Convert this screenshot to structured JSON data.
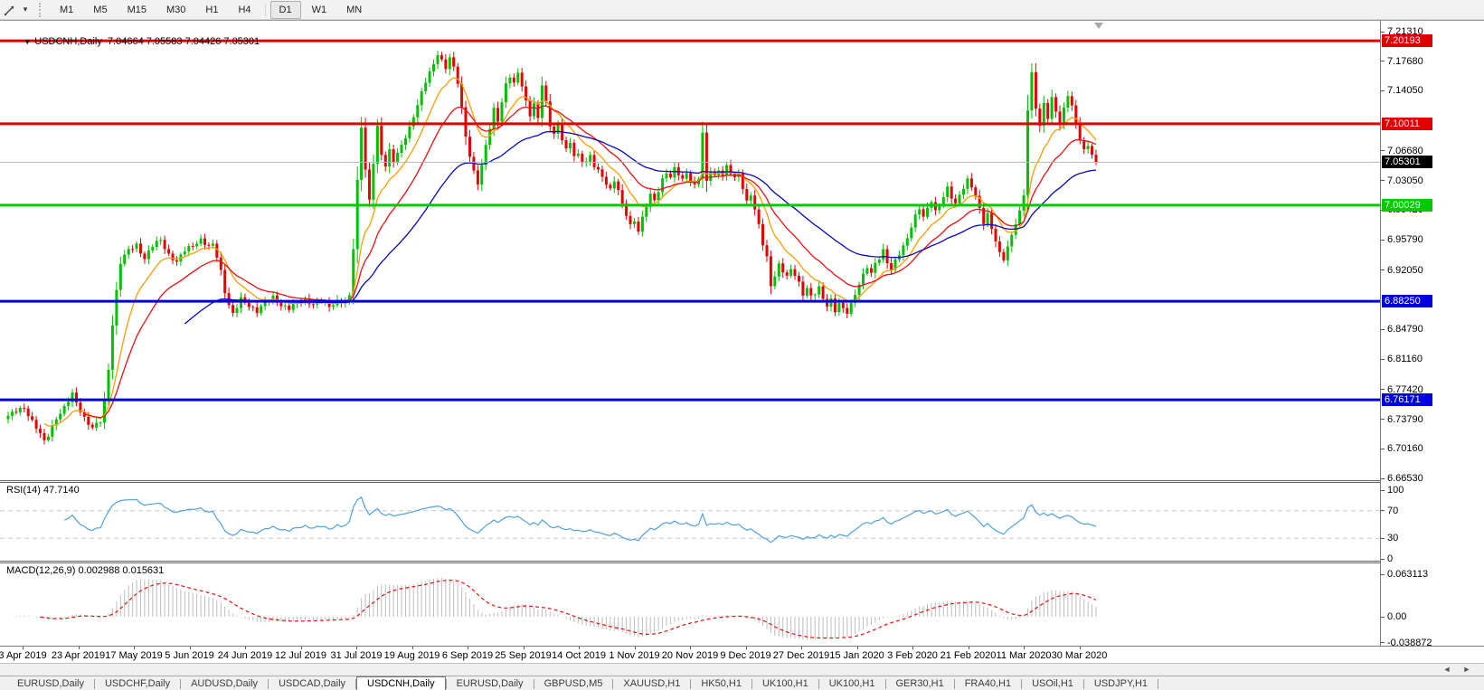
{
  "icons": {
    "dropdown": "▾",
    "title_marker": "▼",
    "scroll_left": "◄",
    "scroll_right": "►"
  },
  "toolbar": {
    "timeframes": [
      "M1",
      "M5",
      "M15",
      "M30",
      "H1",
      "H4",
      "D1",
      "W1",
      "MN"
    ],
    "active_timeframe": "D1"
  },
  "chart": {
    "title_text": "USDCNH,Daily  7.04664 7.05583 7.04426 7.05301",
    "symbol": "USDCNH",
    "timeframe": "Daily",
    "open": 7.04664,
    "high": 7.05583,
    "low": 7.04426,
    "close": 7.05301
  },
  "chart_data": {
    "type": "candlestick",
    "symbol": "USDCNH",
    "period": "Daily",
    "x_labels": [
      "3 Apr 2019",
      "23 Apr 2019",
      "17 May 2019",
      "5 Jun 2019",
      "24 Jun 2019",
      "12 Jul 2019",
      "31 Jul 2019",
      "19 Aug 2019",
      "6 Sep 2019",
      "25 Sep 2019",
      "14 Oct 2019",
      "1 Nov 2019",
      "20 Nov 2019",
      "9 Dec 2019",
      "27 Dec 2019",
      "15 Jan 2020",
      "3 Feb 2020",
      "21 Feb 2020",
      "11 Mar 2020",
      "30 Mar 2020"
    ],
    "price_axis_ticks": [
      "7.21310",
      "7.17680",
      "7.14050",
      "7.06680",
      "7.03050",
      "6.99420",
      "6.95790",
      "6.92050",
      "6.84790",
      "6.81160",
      "6.77420",
      "6.73790",
      "6.70160",
      "6.66530"
    ],
    "price_axis_top": 7.2131,
    "price_axis_bottom": 6.6653,
    "horizontal_levels": [
      {
        "value": 7.20193,
        "label": "7.20193",
        "color": "#e00000",
        "type": "resistance"
      },
      {
        "value": 7.10011,
        "label": "7.10011",
        "color": "#e00000",
        "type": "resistance"
      },
      {
        "value": 7.00029,
        "label": "7.00029",
        "color": "#00cc00",
        "type": "support"
      },
      {
        "value": 6.8825,
        "label": "6.88250",
        "color": "#0000e0",
        "type": "support"
      },
      {
        "value": 6.76171,
        "label": "6.76171",
        "color": "#0000e0",
        "type": "support"
      }
    ],
    "current_price": {
      "value": 7.05301,
      "label": "7.05301",
      "line_color": "#b4b4b4",
      "badge_color": "#000000"
    },
    "candle_count": 272,
    "bull_color": "#00c000",
    "bear_color": "#e80000",
    "close_path_anchors": [
      [
        0,
        6.742
      ],
      [
        2,
        6.747
      ],
      [
        4,
        6.752
      ],
      [
        5,
        6.744
      ],
      [
        7,
        6.728
      ],
      [
        9,
        6.71
      ],
      [
        10,
        6.718
      ],
      [
        12,
        6.74
      ],
      [
        14,
        6.752
      ],
      [
        16,
        6.768
      ],
      [
        17,
        6.758
      ],
      [
        19,
        6.74
      ],
      [
        21,
        6.727
      ],
      [
        23,
        6.735
      ],
      [
        24,
        6.76
      ],
      [
        25,
        6.8
      ],
      [
        26,
        6.855
      ],
      [
        27,
        6.895
      ],
      [
        28,
        6.93
      ],
      [
        30,
        6.945
      ],
      [
        32,
        6.952
      ],
      [
        34,
        6.935
      ],
      [
        36,
        6.95
      ],
      [
        38,
        6.958
      ],
      [
        40,
        6.94
      ],
      [
        42,
        6.93
      ],
      [
        44,
        6.945
      ],
      [
        46,
        6.952
      ],
      [
        48,
        6.958
      ],
      [
        50,
        6.948
      ],
      [
        51,
        6.952
      ],
      [
        52,
        6.938
      ],
      [
        53,
        6.92
      ],
      [
        54,
        6.895
      ],
      [
        55,
        6.878
      ],
      [
        56,
        6.866
      ],
      [
        57,
        6.875
      ],
      [
        58,
        6.885
      ],
      [
        60,
        6.878
      ],
      [
        62,
        6.87
      ],
      [
        64,
        6.88
      ],
      [
        66,
        6.888
      ],
      [
        68,
        6.878
      ],
      [
        70,
        6.873
      ],
      [
        72,
        6.88
      ],
      [
        74,
        6.885
      ],
      [
        76,
        6.878
      ],
      [
        78,
        6.882
      ],
      [
        80,
        6.877
      ],
      [
        82,
        6.883
      ],
      [
        84,
        6.88
      ],
      [
        85,
        6.888
      ],
      [
        86,
        6.948
      ],
      [
        87,
        7.03
      ],
      [
        88,
        7.098
      ],
      [
        89,
        7.045
      ],
      [
        90,
        7.005
      ],
      [
        91,
        7.052
      ],
      [
        92,
        7.095
      ],
      [
        93,
        7.062
      ],
      [
        94,
        7.05
      ],
      [
        95,
        7.068
      ],
      [
        96,
        7.055
      ],
      [
        98,
        7.072
      ],
      [
        100,
        7.095
      ],
      [
        102,
        7.125
      ],
      [
        104,
        7.152
      ],
      [
        106,
        7.172
      ],
      [
        107,
        7.186
      ],
      [
        108,
        7.178
      ],
      [
        109,
        7.17
      ],
      [
        110,
        7.182
      ],
      [
        111,
        7.168
      ],
      [
        112,
        7.15
      ],
      [
        113,
        7.118
      ],
      [
        114,
        7.085
      ],
      [
        115,
        7.062
      ],
      [
        116,
        7.042
      ],
      [
        117,
        7.028
      ],
      [
        118,
        7.048
      ],
      [
        119,
        7.072
      ],
      [
        120,
        7.095
      ],
      [
        121,
        7.118
      ],
      [
        122,
        7.105
      ],
      [
        123,
        7.128
      ],
      [
        124,
        7.148
      ],
      [
        125,
        7.158
      ],
      [
        126,
        7.148
      ],
      [
        127,
        7.162
      ],
      [
        128,
        7.148
      ],
      [
        129,
        7.128
      ],
      [
        130,
        7.112
      ],
      [
        131,
        7.125
      ],
      [
        132,
        7.105
      ],
      [
        133,
        7.148
      ],
      [
        134,
        7.125
      ],
      [
        135,
        7.098
      ],
      [
        136,
        7.09
      ],
      [
        137,
        7.098
      ],
      [
        138,
        7.082
      ],
      [
        139,
        7.068
      ],
      [
        140,
        7.075
      ],
      [
        141,
        7.062
      ],
      [
        142,
        7.062
      ],
      [
        143,
        7.055
      ],
      [
        144,
        7.055
      ],
      [
        145,
        7.06
      ],
      [
        146,
        7.048
      ],
      [
        148,
        7.035
      ],
      [
        150,
        7.02
      ],
      [
        151,
        7.032
      ],
      [
        152,
        7.018
      ],
      [
        153,
        7.0
      ],
      [
        154,
        6.988
      ],
      [
        155,
        6.975
      ],
      [
        156,
        6.982
      ],
      [
        157,
        6.97
      ],
      [
        158,
        6.985
      ],
      [
        159,
        7.0
      ],
      [
        160,
        7.012
      ],
      [
        161,
        7.005
      ],
      [
        162,
        7.018
      ],
      [
        163,
        7.032
      ],
      [
        164,
        7.042
      ],
      [
        165,
        7.035
      ],
      [
        166,
        7.045
      ],
      [
        167,
        7.038
      ],
      [
        168,
        7.03
      ],
      [
        169,
        7.04
      ],
      [
        170,
        7.032
      ],
      [
        171,
        7.025
      ],
      [
        172,
        7.035
      ],
      [
        173,
        7.088
      ],
      [
        174,
        7.028
      ],
      [
        175,
        7.042
      ],
      [
        176,
        7.035
      ],
      [
        177,
        7.045
      ],
      [
        178,
        7.038
      ],
      [
        179,
        7.048
      ],
      [
        180,
        7.04
      ],
      [
        181,
        7.032
      ],
      [
        182,
        7.038
      ],
      [
        183,
        7.022
      ],
      [
        184,
        7.005
      ],
      [
        185,
        7.015
      ],
      [
        186,
        6.995
      ],
      [
        187,
        6.975
      ],
      [
        188,
        6.952
      ],
      [
        189,
        6.935
      ],
      [
        190,
        6.902
      ],
      [
        191,
        6.915
      ],
      [
        192,
        6.928
      ],
      [
        193,
        6.92
      ],
      [
        194,
        6.912
      ],
      [
        195,
        6.92
      ],
      [
        196,
        6.915
      ],
      [
        197,
        6.905
      ],
      [
        198,
        6.892
      ],
      [
        199,
        6.9
      ],
      [
        200,
        6.888
      ],
      [
        201,
        6.892
      ],
      [
        202,
        6.898
      ],
      [
        203,
        6.885
      ],
      [
        204,
        6.878
      ],
      [
        205,
        6.885
      ],
      [
        206,
        6.872
      ],
      [
        207,
        6.88
      ],
      [
        208,
        6.872
      ],
      [
        209,
        6.868
      ],
      [
        210,
        6.878
      ],
      [
        211,
        6.892
      ],
      [
        212,
        6.905
      ],
      [
        213,
        6.915
      ],
      [
        214,
        6.925
      ],
      [
        215,
        6.915
      ],
      [
        216,
        6.928
      ],
      [
        217,
        6.935
      ],
      [
        218,
        6.945
      ],
      [
        219,
        6.932
      ],
      [
        220,
        6.922
      ],
      [
        221,
        6.932
      ],
      [
        222,
        6.94
      ],
      [
        223,
        6.948
      ],
      [
        224,
        6.96
      ],
      [
        225,
        6.975
      ],
      [
        226,
        6.988
      ],
      [
        227,
        6.998
      ],
      [
        228,
        6.985
      ],
      [
        229,
        6.995
      ],
      [
        230,
        7.005
      ],
      [
        231,
        6.992
      ],
      [
        232,
        7.002
      ],
      [
        233,
        7.012
      ],
      [
        234,
        7.022
      ],
      [
        235,
        7.01
      ],
      [
        236,
        7.0
      ],
      [
        237,
        7.012
      ],
      [
        238,
        7.022
      ],
      [
        239,
        7.032
      ],
      [
        240,
        7.025
      ],
      [
        241,
        7.012
      ],
      [
        242,
        6.995
      ],
      [
        243,
        6.978
      ],
      [
        244,
        6.988
      ],
      [
        245,
        6.972
      ],
      [
        246,
        6.958
      ],
      [
        247,
        6.942
      ],
      [
        248,
        6.935
      ],
      [
        249,
        6.948
      ],
      [
        250,
        6.962
      ],
      [
        251,
        6.978
      ],
      [
        252,
        6.992
      ],
      [
        253,
        7.015
      ],
      [
        254,
        7.118
      ],
      [
        255,
        7.162
      ],
      [
        256,
        7.12
      ],
      [
        257,
        7.095
      ],
      [
        258,
        7.125
      ],
      [
        259,
        7.108
      ],
      [
        260,
        7.132
      ],
      [
        261,
        7.118
      ],
      [
        262,
        7.098
      ],
      [
        263,
        7.118
      ],
      [
        264,
        7.135
      ],
      [
        265,
        7.12
      ],
      [
        266,
        7.102
      ],
      [
        267,
        7.082
      ],
      [
        268,
        7.068
      ],
      [
        269,
        7.075
      ],
      [
        270,
        7.06
      ],
      [
        271,
        7.05301
      ]
    ],
    "moving_averages": [
      {
        "name": "fast-ma",
        "period": 10,
        "color": "#ff9d00"
      },
      {
        "name": "medium-ma",
        "period": 20,
        "color": "#ee1010"
      },
      {
        "name": "slow-ma",
        "period": 45,
        "color": "#0505c8"
      }
    ],
    "rsi": {
      "label": "RSI(14) 47.7140",
      "period": 14,
      "current": 47.714,
      "overbought": 70,
      "oversold": 30,
      "axis_ticks": [
        "100",
        "70",
        "30",
        "0"
      ],
      "line_color": "#4fa0e0",
      "level_color": "#c8c8c8"
    },
    "macd": {
      "label": "MACD(12,26,9) 0.002988 0.015631",
      "fast": 12,
      "slow": 26,
      "signal": 9,
      "current_main": 0.002988,
      "current_signal": 0.015631,
      "axis_ticks": [
        "0.063113",
        "0.00",
        "-0.038872"
      ],
      "axis_top": 0.063113,
      "axis_bottom": -0.038872,
      "histogram_color": "#bdbdbd",
      "signal_color": "#ee1010"
    }
  },
  "tabs": [
    {
      "label": "EURUSD,Daily",
      "active": false
    },
    {
      "label": "USDCHF,Daily",
      "active": false
    },
    {
      "label": "AUDUSD,Daily",
      "active": false
    },
    {
      "label": "USDCAD,Daily",
      "active": false
    },
    {
      "label": "USDCNH,Daily",
      "active": true
    },
    {
      "label": "EURUSD,Daily",
      "active": false
    },
    {
      "label": "GBPUSD,M5",
      "active": false
    },
    {
      "label": "XAUUSD,H1",
      "active": false
    },
    {
      "label": "HK50,H1",
      "active": false
    },
    {
      "label": "UK100,H1",
      "active": false
    },
    {
      "label": "UK100,H1",
      "active": false
    },
    {
      "label": "GER30,H1",
      "active": false
    },
    {
      "label": "FRA40,H1",
      "active": false
    },
    {
      "label": "USOil,H1",
      "active": false
    },
    {
      "label": "USDJPY,H1",
      "active": false
    }
  ]
}
